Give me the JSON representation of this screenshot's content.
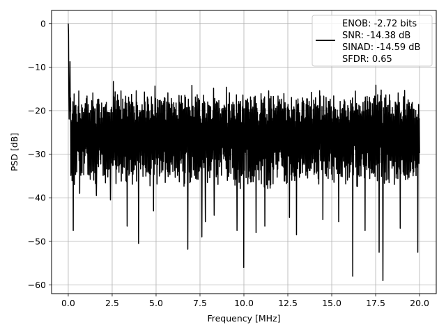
{
  "chart_data": {
    "type": "line",
    "title": "",
    "xlabel": "Frequency [MHz]",
    "ylabel": "PSD [dB]",
    "xlim": [
      -0.95,
      20.95
    ],
    "ylim": [
      -62,
      3
    ],
    "x_ticks": [
      0.0,
      2.5,
      5.0,
      7.5,
      10.0,
      12.5,
      15.0,
      17.5,
      20.0
    ],
    "x_tick_labels": [
      "0.0",
      "2.5",
      "5.0",
      "7.5",
      "10.0",
      "12.5",
      "15.0",
      "17.5",
      "20.0"
    ],
    "y_ticks": [
      0,
      -10,
      -20,
      -30,
      -40,
      -50,
      -60
    ],
    "y_tick_labels": [
      "0",
      "−10",
      "−20",
      "−30",
      "−40",
      "−50",
      "−60"
    ],
    "grid": true,
    "legend_position": "top-right",
    "legend_lines": [
      "ENOB: -2.72 bits",
      "SNR: -14.38 dB",
      "SINAD: -14.59 dB",
      "SFDR: 0.65"
    ],
    "line_color": "#000000",
    "series": [
      {
        "x_range": [
          0,
          20
        ],
        "num_points": 1200,
        "peak": {
          "x": 0.0,
          "y": 0
        },
        "noise_band_upper": -18,
        "noise_band_lower": -35,
        "dips": [
          {
            "x": 0.28,
            "y": -47.5
          },
          {
            "x": 0.65,
            "y": -39
          },
          {
            "x": 1.6,
            "y": -39.5
          },
          {
            "x": 2.4,
            "y": -40.5
          },
          {
            "x": 3.35,
            "y": -46.5
          },
          {
            "x": 4.0,
            "y": -50.5
          },
          {
            "x": 4.85,
            "y": -43
          },
          {
            "x": 6.8,
            "y": -51.8
          },
          {
            "x": 7.6,
            "y": -49
          },
          {
            "x": 7.8,
            "y": -45.5
          },
          {
            "x": 8.3,
            "y": -44
          },
          {
            "x": 9.6,
            "y": -47.5
          },
          {
            "x": 10.0,
            "y": -56
          },
          {
            "x": 10.7,
            "y": -48
          },
          {
            "x": 11.2,
            "y": -46.5
          },
          {
            "x": 12.6,
            "y": -44.5
          },
          {
            "x": 13.0,
            "y": -48.5
          },
          {
            "x": 14.5,
            "y": -45
          },
          {
            "x": 15.4,
            "y": -45.5
          },
          {
            "x": 16.2,
            "y": -58
          },
          {
            "x": 16.9,
            "y": -47.5
          },
          {
            "x": 17.7,
            "y": -52.5
          },
          {
            "x": 17.92,
            "y": -59
          },
          {
            "x": 18.9,
            "y": -47
          },
          {
            "x": 19.9,
            "y": -52.5
          }
        ]
      }
    ]
  }
}
